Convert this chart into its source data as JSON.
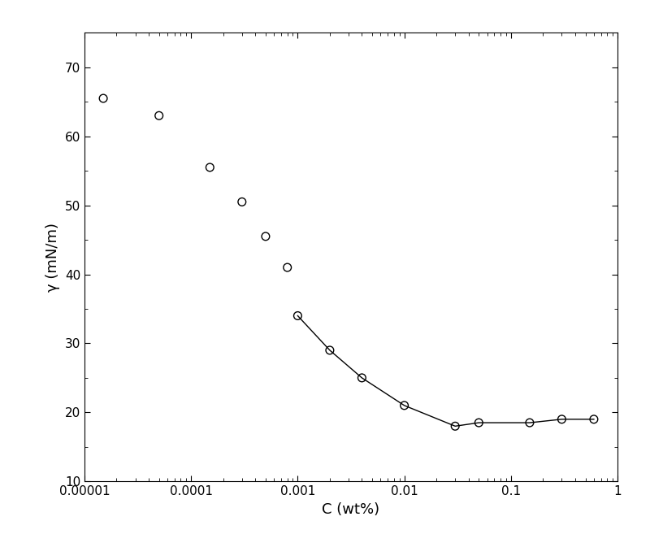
{
  "scatter_x": [
    1.5e-05,
    5e-05,
    0.00015,
    0.0003,
    0.0005,
    0.0008,
    0.001,
    0.002,
    0.004,
    0.01,
    0.03,
    0.05,
    0.15,
    0.3,
    0.6
  ],
  "scatter_y": [
    65.5,
    63.0,
    55.5,
    50.5,
    45.5,
    41.0,
    34.0,
    29.0,
    25.0,
    21.0,
    18.0,
    18.5,
    18.5,
    19.0,
    19.0
  ],
  "line_x": [
    0.001,
    0.002,
    0.004,
    0.01,
    0.03,
    0.05,
    0.15,
    0.3,
    0.6
  ],
  "line_y": [
    34.0,
    29.0,
    25.0,
    21.0,
    18.0,
    18.5,
    18.5,
    19.0,
    19.0
  ],
  "xlabel": "C (wt%)",
  "ylabel": "γ (mN/m)",
  "xlim": [
    1e-05,
    1.0
  ],
  "ylim": [
    10,
    75
  ],
  "yticks": [
    10,
    20,
    30,
    40,
    50,
    60,
    70
  ],
  "xticks": [
    1e-05,
    0.0001,
    0.001,
    0.01,
    0.1,
    1.0
  ],
  "xtick_labels": [
    "0.00001",
    "0.0001",
    "0.001",
    "0.01",
    "0.1",
    "1"
  ],
  "background_color": "#ffffff",
  "marker_color": "black",
  "line_color": "black",
  "marker_size": 7,
  "xlabel_fontsize": 13,
  "ylabel_fontsize": 13,
  "tick_fontsize": 11
}
